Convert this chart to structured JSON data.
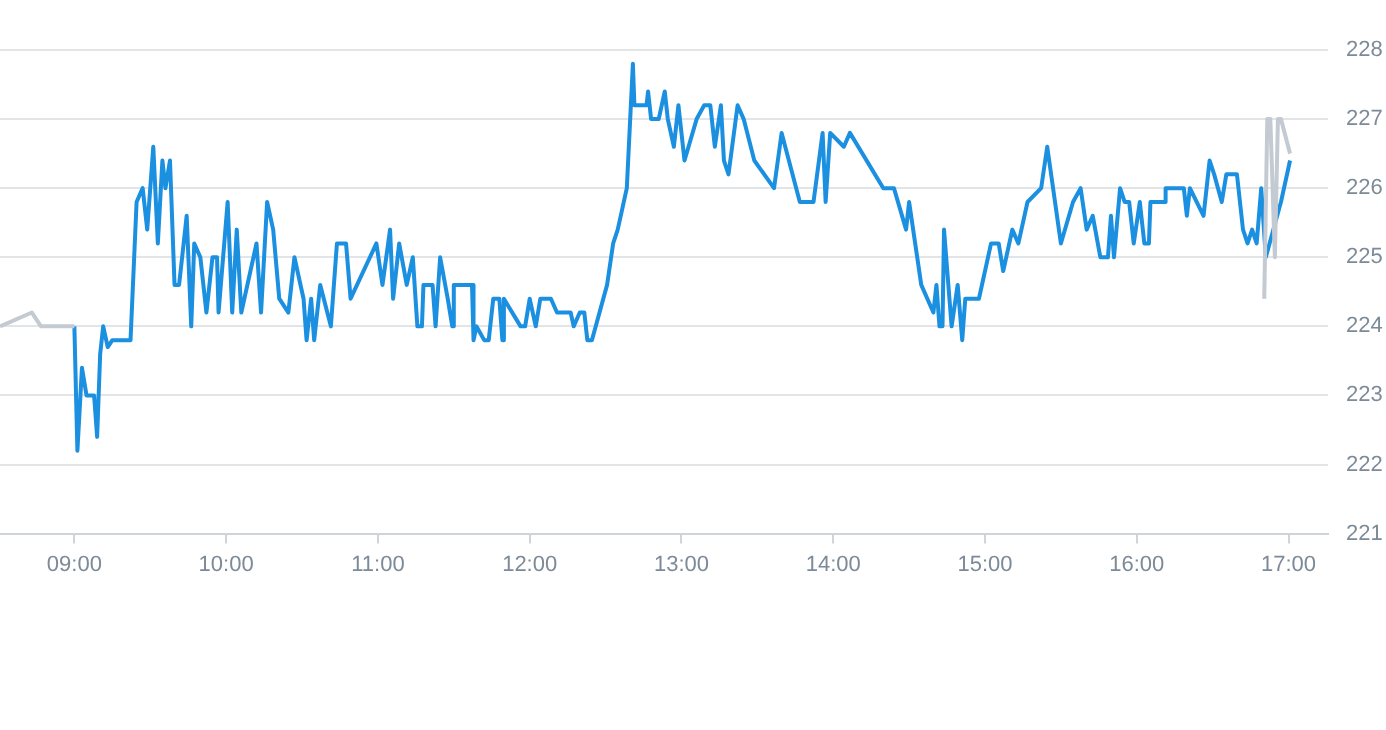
{
  "chart_data": {
    "type": "line",
    "xlim": [
      8.51,
      17.26
    ],
    "ylim": [
      221,
      228
    ],
    "xticks": [
      {
        "value": 9,
        "label": "09:00"
      },
      {
        "value": 10,
        "label": "10:00"
      },
      {
        "value": 11,
        "label": "11:00"
      },
      {
        "value": 12,
        "label": "12:00"
      },
      {
        "value": 13,
        "label": "13:00"
      },
      {
        "value": 14,
        "label": "14:00"
      },
      {
        "value": 15,
        "label": "15:00"
      },
      {
        "value": 16,
        "label": "16:00"
      },
      {
        "value": 17,
        "label": "17:00"
      }
    ],
    "yticks": [
      221,
      222,
      223,
      224,
      225,
      226,
      227,
      228
    ],
    "grid": "y",
    "legend": false,
    "marker": "none",
    "line_style": "solid",
    "series": [
      {
        "color": "#c3cad2",
        "x": [
          8.51,
          8.72,
          8.78,
          9.0,
          13.0,
          16.84,
          16.86,
          16.88,
          16.91,
          16.93,
          16.95,
          17.01
        ],
        "values": [
          224.0,
          224.2,
          224.0,
          224.0,
          null,
          224.4,
          227.0,
          227.0,
          225.0,
          227.0,
          227.0,
          226.5
        ]
      },
      {
        "color": "#1b8fe0",
        "x": [
          9.0,
          9.02,
          9.05,
          9.08,
          9.13,
          9.15,
          9.17,
          9.19,
          9.22,
          9.25,
          9.37,
          9.41,
          9.45,
          9.48,
          9.52,
          9.55,
          9.58,
          9.6,
          9.63,
          9.66,
          9.69,
          9.74,
          9.77,
          9.79,
          9.83,
          9.87,
          9.91,
          9.94,
          9.95,
          10.01,
          10.04,
          10.07,
          10.1,
          10.2,
          10.23,
          10.27,
          10.31,
          10.35,
          10.41,
          10.45,
          10.51,
          10.53,
          10.56,
          10.58,
          10.62,
          10.69,
          10.73,
          10.79,
          10.82,
          10.99,
          11.03,
          11.08,
          11.1,
          11.14,
          11.19,
          11.23,
          11.26,
          11.29,
          11.3,
          11.36,
          11.38,
          11.41,
          11.46,
          11.49,
          11.5,
          11.62,
          11.63,
          11.65,
          11.7,
          11.73,
          11.76,
          11.8,
          11.82,
          11.83,
          11.94,
          11.97,
          12.0,
          12.04,
          12.07,
          12.14,
          12.18,
          12.27,
          12.29,
          12.33,
          12.36,
          12.38,
          12.41,
          12.51,
          12.55,
          12.58,
          12.6,
          12.64,
          12.68,
          12.69,
          12.77,
          12.78,
          12.8,
          12.85,
          12.89,
          12.91,
          12.95,
          12.98,
          13.02,
          13.1,
          13.15,
          13.19,
          13.22,
          13.26,
          13.28,
          13.31,
          13.37,
          13.41,
          13.48,
          13.61,
          13.66,
          13.78,
          13.87,
          13.93,
          13.95,
          13.98,
          14.07,
          14.11,
          14.33,
          14.4,
          14.48,
          14.5,
          14.58,
          14.66,
          14.68,
          14.7,
          14.72,
          14.73,
          14.78,
          14.82,
          14.85,
          14.87,
          14.96,
          15.04,
          15.09,
          15.12,
          15.18,
          15.22,
          15.28,
          15.37,
          15.41,
          15.5,
          15.58,
          15.63,
          15.67,
          15.71,
          15.76,
          15.81,
          15.83,
          15.85,
          15.89,
          15.92,
          15.95,
          15.98,
          16.02,
          16.05,
          16.08,
          16.09,
          16.18,
          16.19,
          16.31,
          16.33,
          16.35,
          16.44,
          16.48,
          16.51,
          16.56,
          16.59,
          16.66,
          16.7,
          16.73,
          16.76,
          16.79,
          16.82,
          16.85,
          16.95,
          17.01
        ],
        "values": [
          224.0,
          222.2,
          223.4,
          223.0,
          223.0,
          222.4,
          223.6,
          224.0,
          223.7,
          223.8,
          223.8,
          225.8,
          226.0,
          225.4,
          226.6,
          225.2,
          226.4,
          226.0,
          226.4,
          224.6,
          224.6,
          225.6,
          224.0,
          225.2,
          225.0,
          224.2,
          225.0,
          225.0,
          224.2,
          225.8,
          224.2,
          225.4,
          224.2,
          225.2,
          224.2,
          225.8,
          225.4,
          224.4,
          224.2,
          225.0,
          224.4,
          223.8,
          224.4,
          223.8,
          224.6,
          224.0,
          225.2,
          225.2,
          224.4,
          225.2,
          224.6,
          225.4,
          224.4,
          225.2,
          224.6,
          225.0,
          224.0,
          224.0,
          224.6,
          224.6,
          224.0,
          225.0,
          224.4,
          224.0,
          224.6,
          224.6,
          223.8,
          224.0,
          223.8,
          223.8,
          224.4,
          224.4,
          223.8,
          224.4,
          224.0,
          224.0,
          224.4,
          224.0,
          224.4,
          224.4,
          224.2,
          224.2,
          224.0,
          224.2,
          224.2,
          223.8,
          223.8,
          224.6,
          225.2,
          225.4,
          225.6,
          226.0,
          227.8,
          227.2,
          227.2,
          227.4,
          227.0,
          227.0,
          227.4,
          227.0,
          226.6,
          227.2,
          226.4,
          227.0,
          227.2,
          227.2,
          226.6,
          227.2,
          226.4,
          226.2,
          227.2,
          227.0,
          226.4,
          226.0,
          226.8,
          225.8,
          225.8,
          226.8,
          225.8,
          226.8,
          226.6,
          226.8,
          226.0,
          226.0,
          225.4,
          225.8,
          224.6,
          224.2,
          224.6,
          224.0,
          224.0,
          225.4,
          224.0,
          224.6,
          223.8,
          224.4,
          224.4,
          225.2,
          225.2,
          224.8,
          225.4,
          225.2,
          225.8,
          226.0,
          226.6,
          225.2,
          225.8,
          226.0,
          225.4,
          225.6,
          225.0,
          225.0,
          225.6,
          225.0,
          226.0,
          225.8,
          225.8,
          225.2,
          225.8,
          225.2,
          225.2,
          225.8,
          225.8,
          226.0,
          226.0,
          225.6,
          226.0,
          225.6,
          226.4,
          226.2,
          225.8,
          226.2,
          226.2,
          225.4,
          225.2,
          225.4,
          225.2,
          226.0,
          225.0,
          225.8,
          226.4
        ]
      }
    ]
  }
}
